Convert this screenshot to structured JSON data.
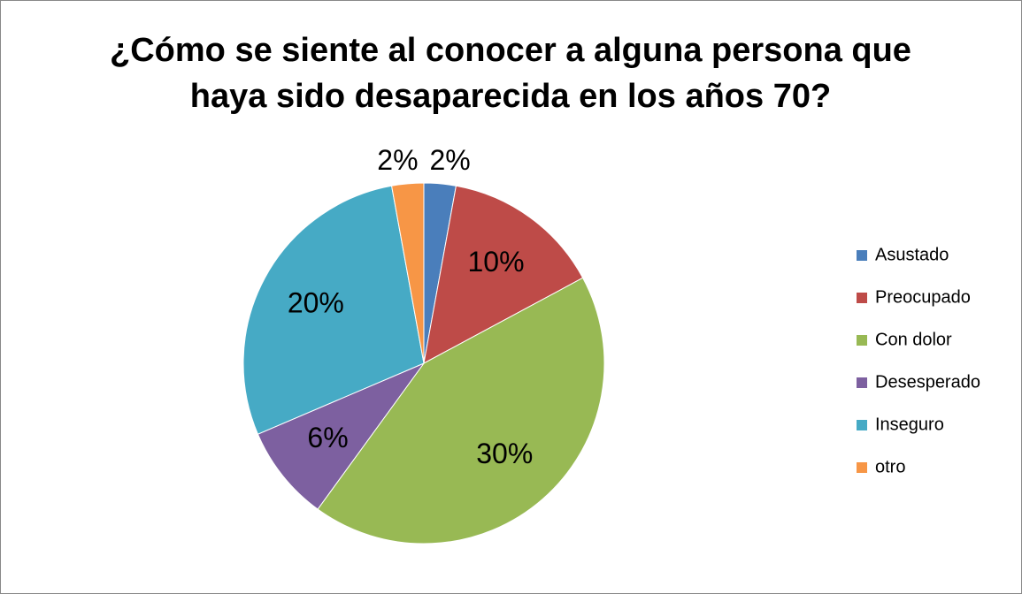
{
  "chart_data": {
    "type": "pie",
    "title": "¿Cómo se siente al conocer a alguna persona que haya sido desaparecida en los años 70?",
    "categories": [
      "Asustado",
      "Preocupado",
      "Con dolor",
      "Desesperado",
      "Inseguro",
      "otro"
    ],
    "values": [
      2,
      10,
      30,
      6,
      20,
      2
    ],
    "value_labels": [
      "2%",
      "10%",
      "30%",
      "6%",
      "20%",
      "2%"
    ],
    "colors": [
      "#4a7ebb",
      "#be4b48",
      "#98b954",
      "#7d60a0",
      "#46aac5",
      "#f79646"
    ],
    "legend": "right"
  }
}
